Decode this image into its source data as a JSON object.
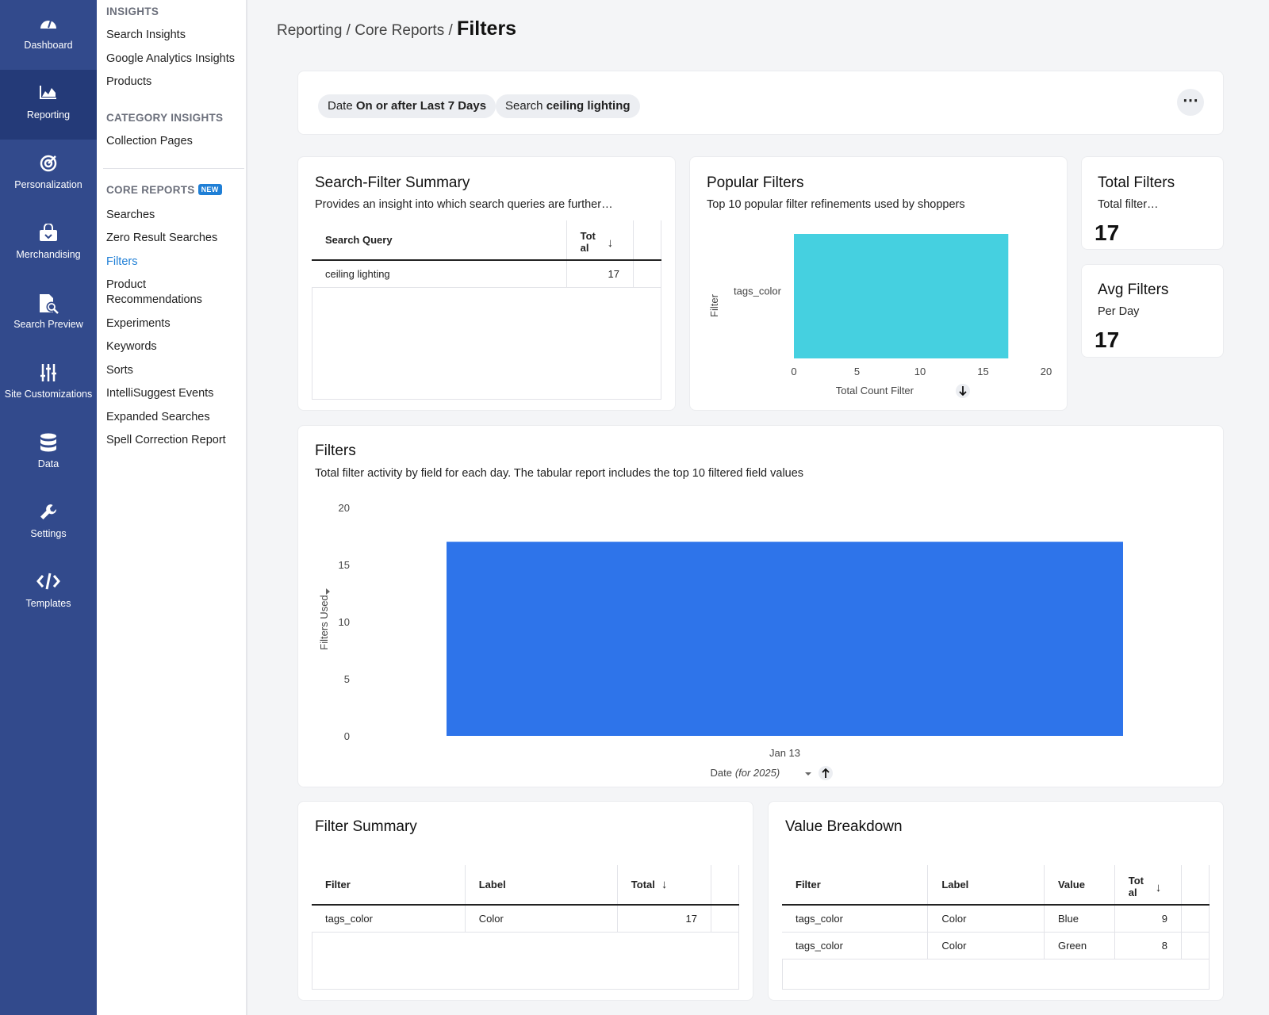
{
  "nav": {
    "items": [
      {
        "label": "Dashboard",
        "icon": "gauge-icon"
      },
      {
        "label": "Reporting",
        "icon": "area-chart-icon"
      },
      {
        "label": "Personalization",
        "icon": "target-icon"
      },
      {
        "label": "Merchandising",
        "icon": "shopping-bag-icon"
      },
      {
        "label": "Search Preview",
        "icon": "document-search-icon"
      },
      {
        "label": "Site Customizations",
        "icon": "sliders-icon"
      },
      {
        "label": "Data",
        "icon": "database-icon"
      },
      {
        "label": "Settings",
        "icon": "wrench-icon"
      },
      {
        "label": "Templates",
        "icon": "code-icon"
      }
    ]
  },
  "sidebar": {
    "insights_heading": "INSIGHTS",
    "insights": [
      "Search Insights",
      "Google Analytics Insights",
      "Products"
    ],
    "category_heading": "CATEGORY INSIGHTS",
    "category": [
      "Collection Pages"
    ],
    "core_heading": "CORE REPORTS",
    "core_badge": "NEW",
    "core": [
      "Searches",
      "Zero Result Searches",
      "Filters",
      "Product Recommendations",
      "Experiments",
      "Keywords",
      "Sorts",
      "IntelliSuggest Events",
      "Expanded Searches",
      "Spell Correction Report"
    ]
  },
  "breadcrumb": {
    "path": "Reporting / Core Reports /",
    "current": "Filters"
  },
  "filters_bar": {
    "chip1": {
      "key": "Date",
      "value": "On or after Last 7 Days"
    },
    "chip2": {
      "key": "Search",
      "value": "ceiling lighting"
    },
    "more": "⋯"
  },
  "summary": {
    "title": "Search-Filter Summary",
    "subtitle": "Provides an insight into which search queries are further…",
    "columns": [
      "Search Query",
      "Tot al"
    ],
    "rows": [
      [
        "ceiling lighting",
        "17"
      ]
    ]
  },
  "popular": {
    "title": "Popular Filters",
    "subtitle": "Top 10 popular filter refinements used by shoppers"
  },
  "total_filters": {
    "title": "Total Filters",
    "subtitle": "Total filter…",
    "value": "17"
  },
  "avg_filters": {
    "title": "Avg Filters",
    "subtitle": "Per Day",
    "value": "17"
  },
  "filters_chart": {
    "title": "Filters",
    "subtitle": "Total filter activity by field for each day. The tabular report includes the top 10 filtered field values"
  },
  "filter_summary": {
    "title": "Filter Summary",
    "columns": [
      "Filter",
      "Label",
      "Total"
    ],
    "rows": [
      [
        "tags_color",
        "Color",
        "17"
      ]
    ]
  },
  "value_breakdown": {
    "title": "Value Breakdown",
    "columns": [
      "Filter",
      "Label",
      "Value",
      "Tot al"
    ],
    "rows": [
      [
        "tags_color",
        "Color",
        "Blue",
        "9"
      ],
      [
        "tags_color",
        "Color",
        "Green",
        "8"
      ]
    ]
  },
  "chart_data": [
    {
      "type": "bar",
      "orientation": "horizontal",
      "categories": [
        "tags_color"
      ],
      "values": [
        17
      ],
      "xlabel": "Total Count Filter",
      "ylabel": "Filter",
      "xlim": [
        0,
        20
      ],
      "xticks": [
        0,
        5,
        10,
        15,
        20
      ],
      "color": "#45d0e0"
    },
    {
      "type": "bar",
      "categories": [
        "Jan 13"
      ],
      "values": [
        17
      ],
      "xlabel": "Date",
      "xlabel_note": "(for 2025)",
      "ylabel": "Filters Used",
      "ylim": [
        0,
        20
      ],
      "yticks": [
        0,
        5,
        10,
        15,
        20
      ],
      "color": "#2e74ea"
    }
  ]
}
